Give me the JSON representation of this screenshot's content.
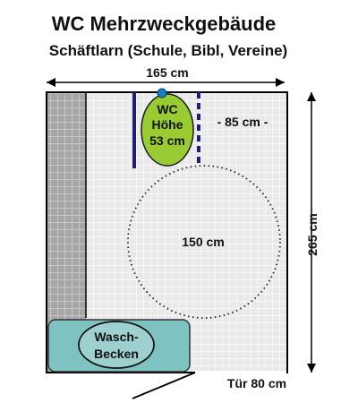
{
  "title": "WC Mehrzweckgebäude",
  "subtitle": "Schäftlarn (Schule, Bibl, Vereine)",
  "dimensions": {
    "width": "165 cm",
    "height": "265 cm",
    "gap": "- 85 cm -",
    "turning_circle": "150 cm",
    "door": "Tür 80 cm"
  },
  "toilet": {
    "line1": "WC",
    "line2": "Höhe",
    "line3": "53 cm"
  },
  "sink": {
    "line1": "Wasch-",
    "line2": "Becken"
  },
  "colors": {
    "tile_floor": "#e9e9e9",
    "tile_wall": "#a6a6a6",
    "toilet": "#99cc33",
    "toilet_dot": "#1a7fc1",
    "grab_bar": "#1f1f7a",
    "sink_outer": "#7ec2c2",
    "sink_inner": "#9fd0d0"
  }
}
